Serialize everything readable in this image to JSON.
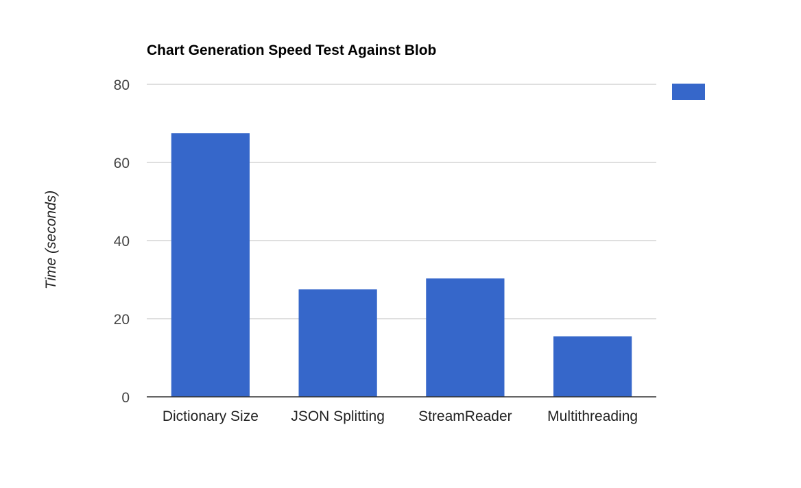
{
  "chart_data": {
    "type": "bar",
    "title": "Chart Generation Speed Test Against Blob",
    "xlabel": "",
    "ylabel": "Time (seconds)",
    "categories": [
      "Dictionary Size",
      "JSON Splitting",
      "StreamReader",
      "Multithreading"
    ],
    "series": [
      {
        "values": [
          67.5,
          27.5,
          30.3,
          15.5
        ]
      }
    ],
    "ylim": [
      0,
      80
    ],
    "yticks": [
      "0",
      "20",
      "40",
      "60",
      "80"
    ],
    "grid": true,
    "legend": "top-right",
    "colors": {
      "bar": "#3667CA",
      "grid": "#CCCCCC",
      "axis": "#333333"
    }
  }
}
